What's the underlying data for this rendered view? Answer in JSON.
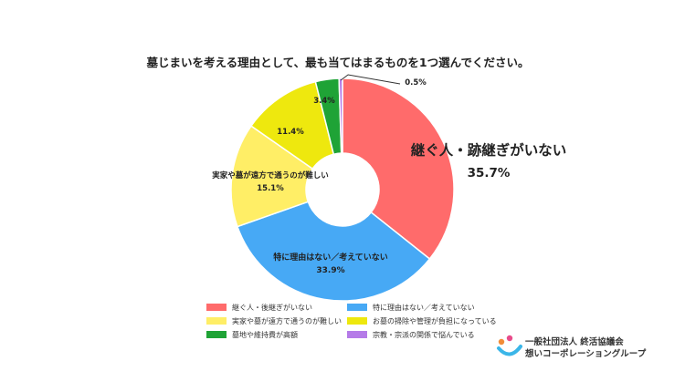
{
  "chart_data": {
    "type": "pie",
    "title": "墓じまいを考える理由として、最も当てはまるものを1つ選んでください。",
    "slices": [
      {
        "label": "継ぐ人・跡継ぎがいない",
        "value": 35.7,
        "value_label": "35.7%",
        "color": "#FF6B6B"
      },
      {
        "label": "特に理由はない／考えていない",
        "value": 33.9,
        "value_label": "33.9%",
        "color": "#47A9F5"
      },
      {
        "label": "実家や墓が遠方で通うのが難しい",
        "value": 15.1,
        "value_label": "15.1%",
        "color": "#FFEE66"
      },
      {
        "label": "お墓の掃除や管理が負担になっている",
        "value": 11.4,
        "value_label": "11.4%",
        "color": "#EEE80E"
      },
      {
        "label": "墓地や維持費が高額",
        "value": 3.4,
        "value_label": "3.4%",
        "color": "#1FA336"
      },
      {
        "label": "宗教・宗派の関係で悩んでいる",
        "value": 0.5,
        "value_label": "0.5%",
        "color": "#B57BE8"
      }
    ],
    "slice_text": {
      "継ぐ人・跡継ぎがいない": "継ぐ人・跡継ぎがいない",
      "特に理由はない／考えていない": "特に理由はない／考えていない",
      "実家や墓が遠方で通うのが難しい": "実家や墓が遠方で通うのが難しい"
    },
    "legend": [
      "継ぐ人・後継ぎがいない",
      "特に理由はない／考えていない",
      "実家や墓が遠方で通うのが難しい",
      "お墓の掃除や管理が負担になっている",
      "墓地や維持費が高額",
      "宗教・宗派の関係で悩んでいる"
    ],
    "legend_placement": "bottom",
    "donut": true
  },
  "logo": {
    "line1": "一般社団法人 終活協議会",
    "line2": "想いコーポレーショングループ",
    "colors": [
      "#F28C38",
      "#E84B8A",
      "#3BB6E8"
    ]
  }
}
